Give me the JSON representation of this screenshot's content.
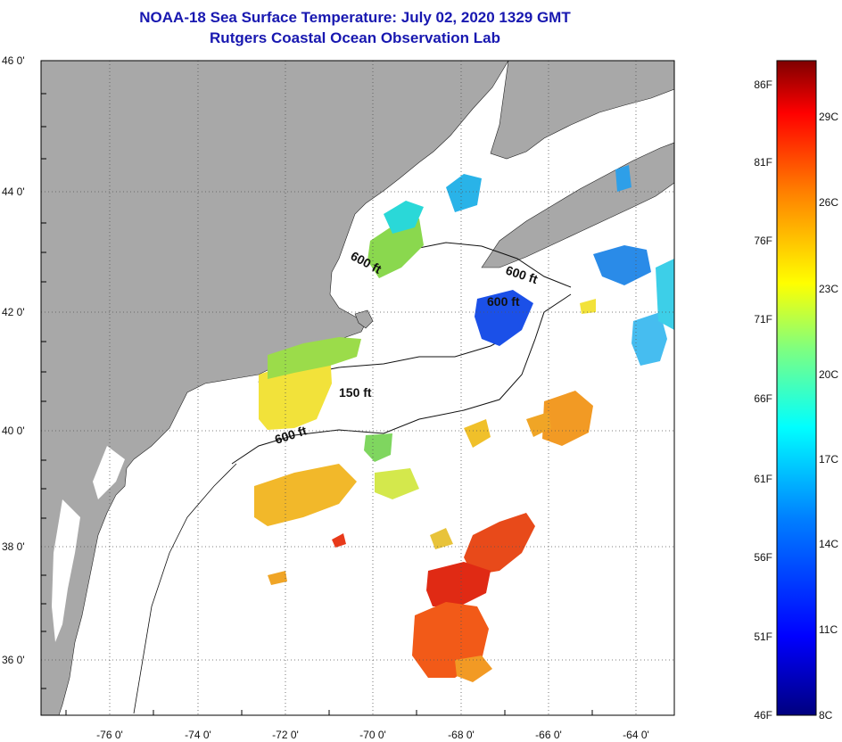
{
  "header": {
    "title": "NOAA-18 Sea Surface Temperature:  July 02, 2020 1329 GMT",
    "subtitle": "Rutgers Coastal Ocean Observation Lab"
  },
  "axes": {
    "lat_labels": [
      "46 0'",
      "44 0'",
      "42 0'",
      "40 0'",
      "38 0'",
      "36 0'"
    ],
    "lon_labels": [
      "-76 0'",
      "-74 0'",
      "-72 0'",
      "-70 0'",
      "-68 0'",
      "-66 0'",
      "-64 0'"
    ]
  },
  "contours": [
    {
      "label": "600 ft"
    },
    {
      "label": "600 ft"
    },
    {
      "label": "600 ft"
    },
    {
      "label": "150 ft"
    },
    {
      "label": "600 ft"
    }
  ],
  "colorbar": {
    "fahrenheit": [
      "86F",
      "81F",
      "76F",
      "71F",
      "66F",
      "61F",
      "56F",
      "51F",
      "46F"
    ],
    "celsius": [
      "29C",
      "26C",
      "23C",
      "20C",
      "17C",
      "14C",
      "11C",
      "8C"
    ],
    "colors": [
      "#00007f",
      "#0000ff",
      "#007fff",
      "#00ffff",
      "#7fff7f",
      "#ffff00",
      "#ff7f00",
      "#ff0000",
      "#7f0000"
    ]
  },
  "colors": {
    "land": "#a8a8a8",
    "ocean": "#ffffff",
    "title": "#1818b0"
  }
}
